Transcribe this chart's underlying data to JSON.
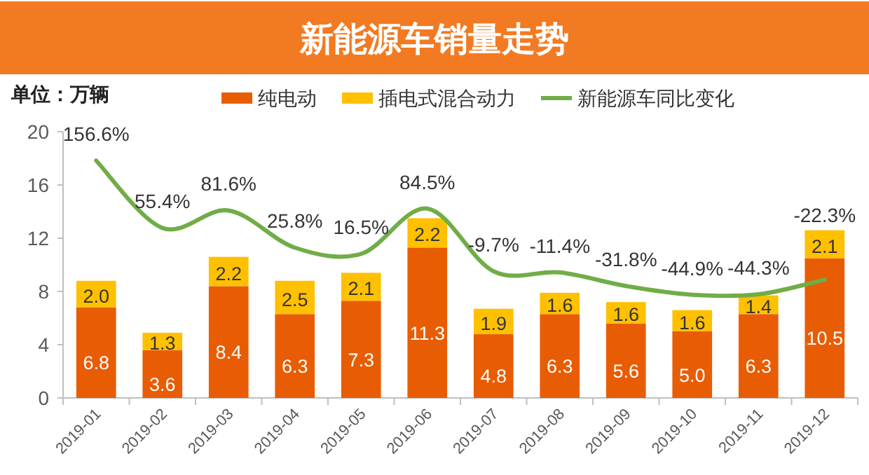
{
  "chart_data": {
    "type": "bar",
    "title": "新能源车销量走势",
    "ylabel": "单位：万辆",
    "stacked": true,
    "legend": "top",
    "tick_labels": "xy",
    "categories": [
      "2019-01",
      "2019-02",
      "2019-03",
      "2019-04",
      "2019-05",
      "2019-06",
      "2019-07",
      "2019-08",
      "2019-09",
      "2019-10",
      "2019-11",
      "2019-12"
    ],
    "ylim": [
      0,
      20
    ],
    "yticks": [
      0,
      4,
      8,
      12,
      16,
      20
    ],
    "y2lim": [
      -200,
      200
    ],
    "series": [
      {
        "name": "纯电动",
        "color": "#e85d04",
        "values": [
          6.8,
          3.6,
          8.4,
          6.3,
          7.3,
          11.3,
          4.8,
          6.3,
          5.6,
          5.0,
          6.3,
          10.5
        ],
        "value_labels": [
          "6.8",
          "3.6",
          "8.4",
          "6.3",
          "7.3",
          "11.3",
          "4.8",
          "6.3",
          "5.6",
          "5.0",
          "6.3",
          "10.5"
        ]
      },
      {
        "name": "插电式混合动力",
        "color": "#ffc000",
        "values": [
          2.0,
          1.3,
          2.2,
          2.5,
          2.1,
          2.2,
          1.9,
          1.6,
          1.6,
          1.6,
          1.4,
          2.1
        ],
        "value_labels": [
          "2.0",
          "1.3",
          "2.2",
          "2.5",
          "2.1",
          "2.2",
          "1.9",
          "1.6",
          "1.6",
          "1.6",
          "1.4",
          "2.1"
        ]
      },
      {
        "name": "新能源车同比变化",
        "type": "line",
        "axis": "y2",
        "color": "#70ad47",
        "values": [
          156.6,
          55.4,
          81.6,
          25.8,
          16.5,
          84.5,
          -9.7,
          -11.4,
          -31.8,
          -44.9,
          -44.3,
          -22.3
        ],
        "value_labels": [
          "156.6%",
          "55.4%",
          "81.6%",
          "25.8%",
          "16.5%",
          "84.5%",
          "-9.7%",
          "-11.4%",
          "-31.8%",
          "-44.9%",
          "-44.3%",
          "-22.3%"
        ]
      }
    ]
  }
}
